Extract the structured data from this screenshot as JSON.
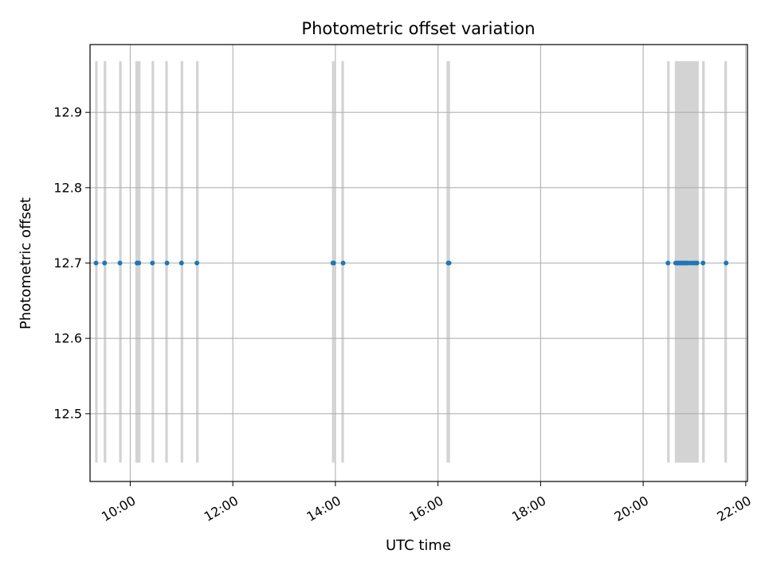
{
  "chart_data": {
    "type": "scatter",
    "title": "Photometric offset variation",
    "xlabel": "UTC time",
    "ylabel": "Photometric offset",
    "xlim": [
      "09:13",
      "22:02"
    ],
    "ylim": [
      12.41,
      12.99
    ],
    "x_ticks": [
      "10:00",
      "12:00",
      "14:00",
      "16:00",
      "18:00",
      "20:00",
      "22:00"
    ],
    "y_ticks": [
      "12.5",
      "12.6",
      "12.7",
      "12.8",
      "12.9"
    ],
    "grid": true,
    "colors": {
      "points": "#1f77b4",
      "bands": "#d3d3d3",
      "grid": "#b0b0b0"
    },
    "band_range": [
      12.435,
      12.968
    ],
    "bands": [
      [
        "09:19",
        "09:21"
      ],
      [
        "09:29",
        "09:32"
      ],
      [
        "09:47",
        "09:50"
      ],
      [
        "10:06",
        "10:12"
      ],
      [
        "10:25",
        "10:28"
      ],
      [
        "10:41",
        "10:44"
      ],
      [
        "10:59",
        "11:02"
      ],
      [
        "11:17",
        "11:20"
      ],
      [
        "13:56",
        "13:59"
      ],
      [
        "14:07",
        "14:10"
      ],
      [
        "16:10",
        "16:14"
      ],
      [
        "20:28",
        "20:31"
      ],
      [
        "20:37",
        "21:05"
      ],
      [
        "21:09",
        "21:12"
      ],
      [
        "21:35",
        "21:38"
      ]
    ],
    "points": [
      {
        "x": "09:20",
        "y": 12.7
      },
      {
        "x": "09:30",
        "y": 12.7
      },
      {
        "x": "09:48",
        "y": 12.7
      },
      {
        "x": "10:08",
        "y": 12.7
      },
      {
        "x": "10:10",
        "y": 12.7
      },
      {
        "x": "10:26",
        "y": 12.7
      },
      {
        "x": "10:43",
        "y": 12.7
      },
      {
        "x": "11:00",
        "y": 12.7
      },
      {
        "x": "11:18",
        "y": 12.7
      },
      {
        "x": "13:57",
        "y": 12.7
      },
      {
        "x": "13:58",
        "y": 12.7
      },
      {
        "x": "14:09",
        "y": 12.7
      },
      {
        "x": "16:12",
        "y": 12.7
      },
      {
        "x": "16:13",
        "y": 12.7
      },
      {
        "x": "20:29",
        "y": 12.7
      },
      {
        "x": "20:38",
        "y": 12.7
      },
      {
        "x": "20:40",
        "y": 12.7
      },
      {
        "x": "20:42",
        "y": 12.7
      },
      {
        "x": "20:44",
        "y": 12.7
      },
      {
        "x": "20:46",
        "y": 12.7
      },
      {
        "x": "20:48",
        "y": 12.7
      },
      {
        "x": "20:50",
        "y": 12.7
      },
      {
        "x": "20:52",
        "y": 12.7
      },
      {
        "x": "20:55",
        "y": 12.7
      },
      {
        "x": "20:58",
        "y": 12.7
      },
      {
        "x": "21:01",
        "y": 12.7
      },
      {
        "x": "21:03",
        "y": 12.7
      },
      {
        "x": "21:10",
        "y": 12.7
      },
      {
        "x": "21:37",
        "y": 12.7
      }
    ]
  }
}
